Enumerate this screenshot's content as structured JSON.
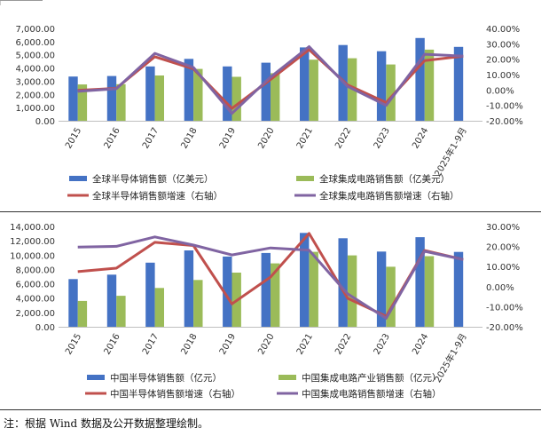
{
  "chart_data": [
    {
      "type": "bar",
      "categories": [
        "2015",
        "2016",
        "2017",
        "2018",
        "2019",
        "2020",
        "2021",
        "2022",
        "2023",
        "2024",
        "2025年1-9月"
      ],
      "y_left_ticks": [
        "0.00",
        "1,000.00",
        "2,000.00",
        "3,000.00",
        "4,000.00",
        "5,000.00",
        "6,000.00",
        "7,000.00"
      ],
      "y_right_ticks": [
        "-20.00%",
        "-10.00%",
        "0.00%",
        "10.00%",
        "20.00%",
        "30.00%",
        "40.00%"
      ],
      "ylim": [
        0,
        7000
      ],
      "ylim_right": [
        -20,
        40
      ],
      "series": [
        {
          "name": "全球半导体销售额（亿美元）",
          "kind": "bar",
          "axis": "left",
          "color": "#4472C4",
          "values": [
            3350,
            3390,
            4120,
            4690,
            4120,
            4400,
            5560,
            5740,
            5270,
            6270,
            5600
          ]
        },
        {
          "name": "全球集成电路销售额（亿美元）",
          "kind": "bar",
          "axis": "left",
          "color": "#9BBB59",
          "values": [
            2750,
            2770,
            3430,
            3930,
            3330,
            3610,
            4630,
            4740,
            4270,
            5390,
            null
          ]
        },
        {
          "name": "全球半导体销售额增速（右轴）",
          "kind": "line",
          "axis": "right",
          "color": "#C0504D",
          "values": [
            -0.2,
            1.1,
            21.6,
            13.7,
            -12.0,
            6.8,
            26.2,
            3.3,
            -8.2,
            19.1,
            22.0
          ]
        },
        {
          "name": "全球集成电路销售额增速（右轴）",
          "kind": "line",
          "axis": "right",
          "color": "#8064A2",
          "values": [
            -0.9,
            0.8,
            23.8,
            14.6,
            -15.2,
            8.4,
            28.2,
            2.3,
            -10.0,
            23.2,
            22.0
          ]
        }
      ]
    },
    {
      "type": "bar",
      "categories": [
        "2015",
        "2016",
        "2017",
        "2018",
        "2019",
        "2020",
        "2021",
        "2022",
        "2023",
        "2024",
        "2025年1-9月"
      ],
      "y_left_ticks": [
        "0.00",
        "2,000.00",
        "4,000.00",
        "6,000.00",
        "8,000.00",
        "10,000.00",
        "12,000.00",
        "14,000.00"
      ],
      "y_right_ticks": [
        "-20.00%",
        "-10.00%",
        "0.00%",
        "10.00%",
        "20.00%",
        "30.00%"
      ],
      "ylim": [
        0,
        14000
      ],
      "ylim_right": [
        -20,
        30
      ],
      "series": [
        {
          "name": "中国半导体销售额（亿元）",
          "kind": "bar",
          "axis": "left",
          "color": "#4472C4",
          "values": [
            6650,
            7270,
            8950,
            10650,
            9800,
            10300,
            13100,
            12350,
            10500,
            12500,
            10450
          ]
        },
        {
          "name": "中国集成电路产业销售额（亿元）",
          "kind": "bar",
          "axis": "left",
          "color": "#9BBB59",
          "values": [
            3600,
            4330,
            5410,
            6530,
            7560,
            8850,
            10460,
            9960,
            8380,
            9850,
            null
          ]
        },
        {
          "name": "中国半导体销售额增速（右轴）",
          "kind": "line",
          "axis": "right",
          "color": "#C0504D",
          "values": [
            7.5,
            9.2,
            22.1,
            20.5,
            -8.6,
            4.8,
            26.5,
            -5.8,
            -14.8,
            18.0,
            13.5
          ]
        },
        {
          "name": "中国集成电路销售额增速（右轴）",
          "kind": "line",
          "axis": "right",
          "color": "#8064A2",
          "values": [
            19.7,
            20.1,
            24.8,
            20.7,
            15.8,
            19.3,
            18.2,
            -3.6,
            -15.8,
            17.6,
            13.5
          ]
        }
      ]
    }
  ],
  "note": "注：根据 Wind 数据及公开数据整理绘制。"
}
